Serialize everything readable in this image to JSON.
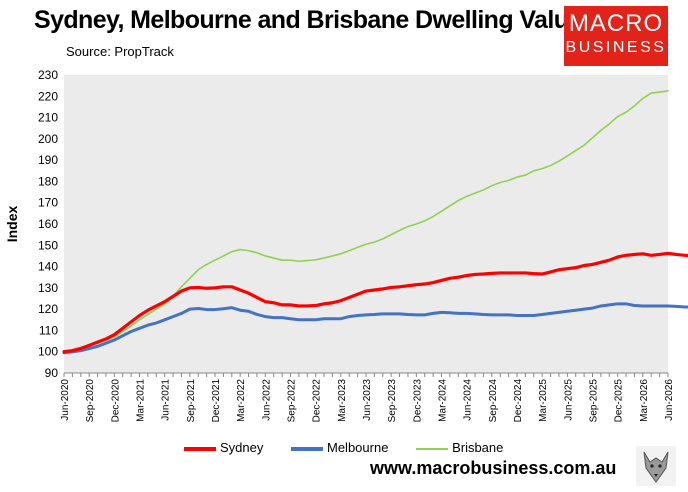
{
  "title": "Sydney, Melbourne and Brisbane Dwelling Values",
  "source": "Source: PropTrack",
  "logo": {
    "line1": "MACRO",
    "line2": "BUSINESS"
  },
  "website": "www.macrobusiness.com.au",
  "colors": {
    "sydney": "#ff0000",
    "melbourne": "#4472c4",
    "brisbane": "#92d050",
    "plot_bg": "#ebebeb",
    "logo_bg": "#e2231a"
  },
  "chart_data": {
    "type": "line",
    "ylabel": "Index",
    "ylim": [
      90,
      230
    ],
    "yticks": [
      90,
      100,
      110,
      120,
      130,
      140,
      150,
      160,
      170,
      180,
      190,
      200,
      210,
      220,
      230
    ],
    "x_tick_labels": [
      "Jun-2020",
      "Sep-2020",
      "Dec-2020",
      "Mar-2021",
      "Jun-2021",
      "Sep-2021",
      "Dec-2021",
      "Mar-2022",
      "Jun-2022",
      "Sep-2022",
      "Dec-2022",
      "Mar-2023",
      "Jun-2023",
      "Sep-2023",
      "Dec-2023",
      "Mar-2024",
      "Jun-2024",
      "Sep-2024",
      "Dec-2024",
      "Mar-2025",
      "Jun-2025",
      "Sep-2025",
      "Dec-2025",
      "Mar-2026",
      "Jun-2026"
    ],
    "grid": false,
    "legend_position": "bottom",
    "series": [
      {
        "name": "Sydney",
        "values": [
          [
            0,
            100
          ],
          [
            1,
            100.5
          ],
          [
            2,
            101.5
          ],
          [
            3,
            103
          ],
          [
            4,
            104.5
          ],
          [
            5,
            106
          ],
          [
            6,
            108
          ],
          [
            7,
            111
          ],
          [
            8,
            114
          ],
          [
            9,
            117
          ],
          [
            10,
            119.5
          ],
          [
            11,
            121.5
          ],
          [
            12,
            123.5
          ],
          [
            13,
            126
          ],
          [
            14,
            128.5
          ],
          [
            15,
            130
          ],
          [
            16,
            130.2
          ],
          [
            17,
            129.8
          ],
          [
            18,
            130
          ],
          [
            19,
            130.5
          ],
          [
            20,
            130.5
          ],
          [
            21,
            129
          ],
          [
            22,
            127.5
          ],
          [
            23,
            125.5
          ],
          [
            24,
            123.5
          ],
          [
            25,
            123
          ],
          [
            26,
            122
          ],
          [
            27,
            122
          ],
          [
            28,
            121.5
          ],
          [
            29,
            121.5
          ],
          [
            30,
            121.7
          ],
          [
            31,
            122.5
          ],
          [
            32,
            123
          ],
          [
            33,
            124
          ],
          [
            34,
            125.5
          ],
          [
            35,
            127
          ],
          [
            36,
            128.5
          ],
          [
            37,
            129
          ],
          [
            38,
            129.5
          ],
          [
            39,
            130.2
          ],
          [
            40,
            130.5
          ],
          [
            41,
            131
          ],
          [
            42,
            131.5
          ],
          [
            43,
            131.8
          ],
          [
            44,
            132.5
          ],
          [
            45,
            133.5
          ],
          [
            46,
            134.5
          ],
          [
            47,
            135
          ],
          [
            48,
            135.8
          ],
          [
            49,
            136.3
          ],
          [
            50,
            136.5
          ],
          [
            51,
            136.8
          ],
          [
            52,
            137
          ],
          [
            53,
            137
          ],
          [
            54,
            137
          ],
          [
            55,
            137
          ],
          [
            56,
            136.7
          ],
          [
            57,
            136.5
          ],
          [
            58,
            137.5
          ],
          [
            59,
            138.5
          ],
          [
            60,
            139
          ],
          [
            61,
            139.5
          ],
          [
            62,
            140.5
          ],
          [
            63,
            141
          ],
          [
            64,
            142
          ],
          [
            65,
            143
          ],
          [
            66,
            144.5
          ],
          [
            67,
            145.3
          ],
          [
            68,
            145.7
          ],
          [
            69,
            146
          ],
          [
            70,
            145.3
          ],
          [
            71,
            145.7
          ],
          [
            72,
            146.2
          ],
          [
            73,
            145.7
          ],
          [
            74,
            145.3
          ],
          [
            75,
            145
          ]
        ]
      },
      {
        "name": "Melbourne",
        "values": [
          [
            0,
            99.5
          ],
          [
            1,
            100
          ],
          [
            2,
            100.5
          ],
          [
            3,
            101.5
          ],
          [
            4,
            102.5
          ],
          [
            5,
            104
          ],
          [
            6,
            105.5
          ],
          [
            7,
            107.5
          ],
          [
            8,
            109.5
          ],
          [
            9,
            111
          ],
          [
            10,
            112.5
          ],
          [
            11,
            113.5
          ],
          [
            12,
            115
          ],
          [
            13,
            116.5
          ],
          [
            14,
            118
          ],
          [
            15,
            120
          ],
          [
            16,
            120.3
          ],
          [
            17,
            119.8
          ],
          [
            18,
            119.8
          ],
          [
            19,
            120.2
          ],
          [
            20,
            120.7
          ],
          [
            21,
            119.5
          ],
          [
            22,
            119
          ],
          [
            23,
            117.5
          ],
          [
            24,
            116.5
          ],
          [
            25,
            116
          ],
          [
            26,
            116
          ],
          [
            27,
            115.5
          ],
          [
            28,
            115
          ],
          [
            29,
            115
          ],
          [
            30,
            115
          ],
          [
            31,
            115.5
          ],
          [
            32,
            115.5
          ],
          [
            33,
            115.5
          ],
          [
            34,
            116.5
          ],
          [
            35,
            117
          ],
          [
            36,
            117.3
          ],
          [
            37,
            117.5
          ],
          [
            38,
            117.8
          ],
          [
            39,
            117.8
          ],
          [
            40,
            117.8
          ],
          [
            41,
            117.5
          ],
          [
            42,
            117.3
          ],
          [
            43,
            117.3
          ],
          [
            44,
            118
          ],
          [
            45,
            118.5
          ],
          [
            46,
            118.3
          ],
          [
            47,
            118
          ],
          [
            48,
            118
          ],
          [
            49,
            117.8
          ],
          [
            50,
            117.5
          ],
          [
            51,
            117.3
          ],
          [
            52,
            117.3
          ],
          [
            53,
            117.3
          ],
          [
            54,
            117
          ],
          [
            55,
            117
          ],
          [
            56,
            117
          ],
          [
            57,
            117.5
          ],
          [
            58,
            118
          ],
          [
            59,
            118.5
          ],
          [
            60,
            119
          ],
          [
            61,
            119.5
          ],
          [
            62,
            120
          ],
          [
            63,
            120.5
          ],
          [
            64,
            121.5
          ],
          [
            65,
            122
          ],
          [
            66,
            122.5
          ],
          [
            67,
            122.5
          ],
          [
            68,
            121.7
          ],
          [
            69,
            121.5
          ],
          [
            70,
            121.5
          ],
          [
            71,
            121.5
          ],
          [
            72,
            121.5
          ],
          [
            73,
            121.3
          ],
          [
            74,
            121
          ],
          [
            75,
            121
          ]
        ]
      },
      {
        "name": "Brisbane",
        "values": [
          [
            0,
            100
          ],
          [
            1,
            101
          ],
          [
            2,
            102
          ],
          [
            3,
            103
          ],
          [
            4,
            104
          ],
          [
            5,
            105.5
          ],
          [
            6,
            107
          ],
          [
            7,
            109.5
          ],
          [
            8,
            112
          ],
          [
            9,
            115
          ],
          [
            10,
            117.5
          ],
          [
            11,
            120
          ],
          [
            12,
            122.5
          ],
          [
            13,
            126
          ],
          [
            14,
            130.5
          ],
          [
            15,
            134.5
          ],
          [
            16,
            138.5
          ],
          [
            17,
            141
          ],
          [
            18,
            143
          ],
          [
            19,
            145
          ],
          [
            20,
            147
          ],
          [
            21,
            148
          ],
          [
            22,
            147.5
          ],
          [
            23,
            146.5
          ],
          [
            24,
            145
          ],
          [
            25,
            144
          ],
          [
            26,
            143
          ],
          [
            27,
            143
          ],
          [
            28,
            142.5
          ],
          [
            29,
            142.8
          ],
          [
            30,
            143.2
          ],
          [
            31,
            144
          ],
          [
            32,
            145
          ],
          [
            33,
            146
          ],
          [
            34,
            147.5
          ],
          [
            35,
            149
          ],
          [
            36,
            150.5
          ],
          [
            37,
            151.5
          ],
          [
            38,
            153
          ],
          [
            39,
            155
          ],
          [
            40,
            157
          ],
          [
            41,
            158.8
          ],
          [
            42,
            160
          ],
          [
            43,
            161.5
          ],
          [
            44,
            163.5
          ],
          [
            45,
            166
          ],
          [
            46,
            168.5
          ],
          [
            47,
            171
          ],
          [
            48,
            173
          ],
          [
            49,
            174.5
          ],
          [
            50,
            176
          ],
          [
            51,
            178
          ],
          [
            52,
            179.5
          ],
          [
            53,
            180.5
          ],
          [
            54,
            182
          ],
          [
            55,
            183
          ],
          [
            56,
            185
          ],
          [
            57,
            186
          ],
          [
            58,
            187.5
          ],
          [
            59,
            189.5
          ],
          [
            60,
            192
          ],
          [
            61,
            194.5
          ],
          [
            62,
            197
          ],
          [
            63,
            200.5
          ],
          [
            64,
            204
          ],
          [
            65,
            207
          ],
          [
            66,
            210.5
          ],
          [
            67,
            212.5
          ],
          [
            68,
            215.5
          ],
          [
            69,
            219
          ],
          [
            70,
            221.5
          ],
          [
            71,
            222
          ],
          [
            72,
            222.5
          ]
        ]
      }
    ]
  }
}
